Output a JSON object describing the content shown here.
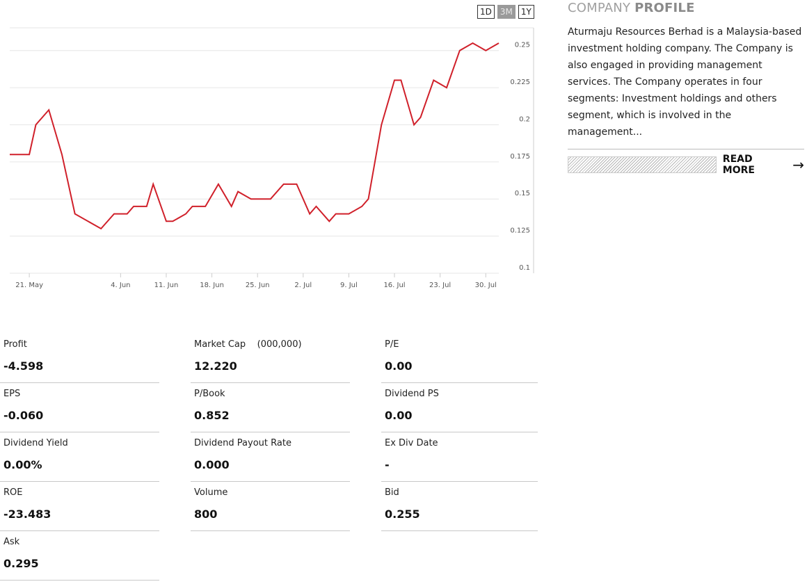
{
  "range_buttons": [
    {
      "label": "1D",
      "active": false
    },
    {
      "label": "3M",
      "active": true
    },
    {
      "label": "1Y",
      "active": false
    }
  ],
  "colors": {
    "line": "#d0202a",
    "accent_gray": "#9a9a9a"
  },
  "chart_data": {
    "type": "line",
    "title": "",
    "xlabel": "",
    "ylabel": "",
    "grid": true,
    "y_axis_side": "right",
    "ylim": [
      0.1,
      0.27
    ],
    "y_ticks": [
      0.1,
      0.125,
      0.15,
      0.175,
      0.2,
      0.225,
      0.25
    ],
    "y_tick_labels": [
      "0.1",
      "0.125",
      "0.15",
      "0.175",
      "0.2",
      "0.225",
      "0.25"
    ],
    "xlim": [
      "2018-05-18",
      "2018-08-01"
    ],
    "x_ticks": [
      "2018-05-21",
      "2018-06-04",
      "2018-06-11",
      "2018-06-18",
      "2018-06-25",
      "2018-07-02",
      "2018-07-09",
      "2018-07-16",
      "2018-07-23",
      "2018-07-30"
    ],
    "x_tick_labels": [
      "21. May",
      "4. Jun",
      "11. Jun",
      "18. Jun",
      "25. Jun",
      "2. Jul",
      "9. Jul",
      "16. Jul",
      "23. Jul",
      "30. Jul"
    ],
    "series": [
      {
        "x": [
          "2018-05-18",
          "2018-05-21",
          "2018-05-22",
          "2018-05-24",
          "2018-05-26",
          "2018-05-28",
          "2018-06-01",
          "2018-06-03",
          "2018-06-05",
          "2018-06-06",
          "2018-06-08",
          "2018-06-09",
          "2018-06-11",
          "2018-06-12",
          "2018-06-14",
          "2018-06-15",
          "2018-06-17",
          "2018-06-19",
          "2018-06-21",
          "2018-06-22",
          "2018-06-24",
          "2018-06-26",
          "2018-06-27",
          "2018-06-29",
          "2018-07-01",
          "2018-07-03",
          "2018-07-04",
          "2018-07-06",
          "2018-07-07",
          "2018-07-09",
          "2018-07-11",
          "2018-07-12",
          "2018-07-14",
          "2018-07-16",
          "2018-07-17",
          "2018-07-19",
          "2018-07-20",
          "2018-07-22",
          "2018-07-24",
          "2018-07-26",
          "2018-07-28",
          "2018-07-30",
          "2018-08-01"
        ],
        "values": [
          0.18,
          0.18,
          0.2,
          0.21,
          0.18,
          0.14,
          0.13,
          0.14,
          0.14,
          0.145,
          0.145,
          0.16,
          0.135,
          0.135,
          0.14,
          0.145,
          0.145,
          0.16,
          0.145,
          0.155,
          0.15,
          0.15,
          0.15,
          0.16,
          0.16,
          0.14,
          0.145,
          0.135,
          0.14,
          0.14,
          0.145,
          0.15,
          0.2,
          0.23,
          0.23,
          0.2,
          0.205,
          0.23,
          0.225,
          0.25,
          0.255,
          0.25,
          0.255
        ]
      }
    ]
  },
  "profile": {
    "title_light": "COMPANY",
    "title_bold": "PROFILE",
    "text": "Aturmaju Resources Berhad is a Malaysia-based investment holding company. The Company is also engaged in providing management services. The Company operates in four segments: Investment holdings and others segment, which is involved in the management...",
    "read_more": "READ MORE",
    "arrow_icon": "arrow-right-icon"
  },
  "stats": [
    {
      "label": "Profit",
      "value": "-4.598"
    },
    {
      "label": "Market Cap    (000,000)",
      "value": "12.220"
    },
    {
      "label": "P/E",
      "value": "0.00"
    },
    {
      "label": "EPS",
      "value": "-0.060"
    },
    {
      "label": "P/Book",
      "value": "0.852"
    },
    {
      "label": "Dividend PS",
      "value": "0.00"
    },
    {
      "label": "Dividend Yield",
      "value": "0.00%"
    },
    {
      "label": "Dividend Payout Rate",
      "value": "0.000"
    },
    {
      "label": "Ex Div Date",
      "value": "-"
    },
    {
      "label": "ROE",
      "value": "-23.483"
    },
    {
      "label": "Volume",
      "value": "800"
    },
    {
      "label": "Bid",
      "value": "0.255"
    },
    {
      "label": "Ask",
      "value": "0.295"
    }
  ]
}
